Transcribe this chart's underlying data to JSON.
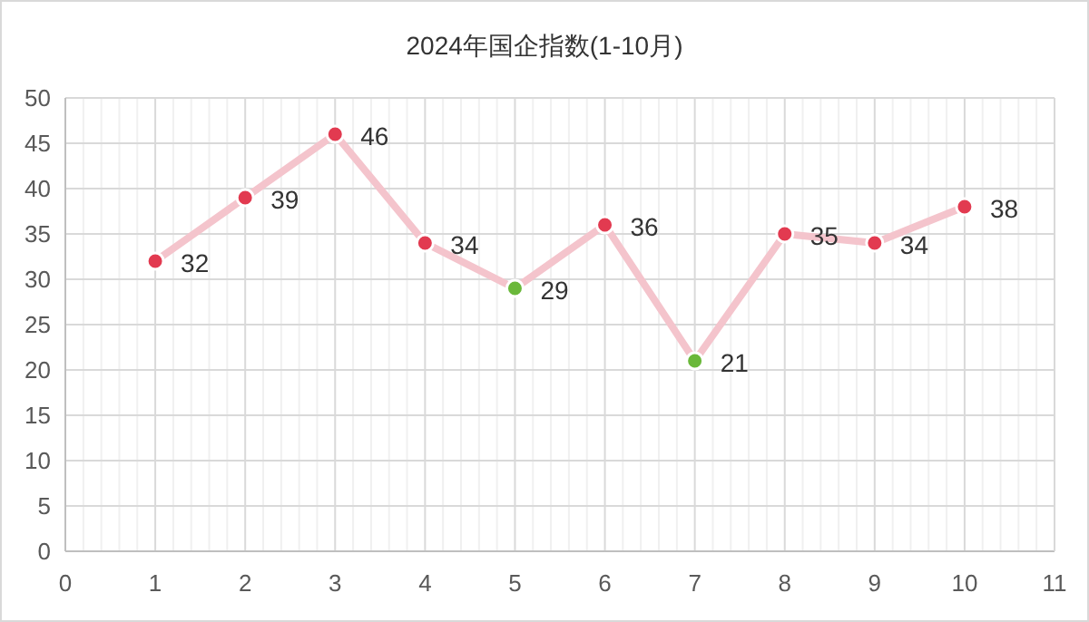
{
  "chart_data": {
    "type": "line",
    "title": "2024年国企指数(1-10月)",
    "x": [
      1,
      2,
      3,
      4,
      5,
      6,
      7,
      8,
      9,
      10
    ],
    "series": [
      {
        "color": "#f4c4cc",
        "colors": [
          "#e23a50",
          "#e23a50",
          "#e23a50",
          "#e23a50",
          "#6ab83a",
          "#e23a50",
          "#6ab83a",
          "#e23a50",
          "#e23a50",
          "#e23a50"
        ],
        "values": [
          32,
          39,
          46,
          34,
          29,
          36,
          21,
          35,
          34,
          38
        ]
      }
    ],
    "xlim": [
      0,
      11
    ],
    "xticks": [
      0,
      1,
      2,
      3,
      4,
      5,
      6,
      7,
      8,
      9,
      10,
      11
    ],
    "ylim": [
      0,
      50
    ],
    "yticks": [
      0,
      5,
      10,
      15,
      20,
      25,
      30,
      35,
      40,
      45,
      50
    ],
    "grid": true,
    "marker": "circle",
    "data_labels": true
  }
}
